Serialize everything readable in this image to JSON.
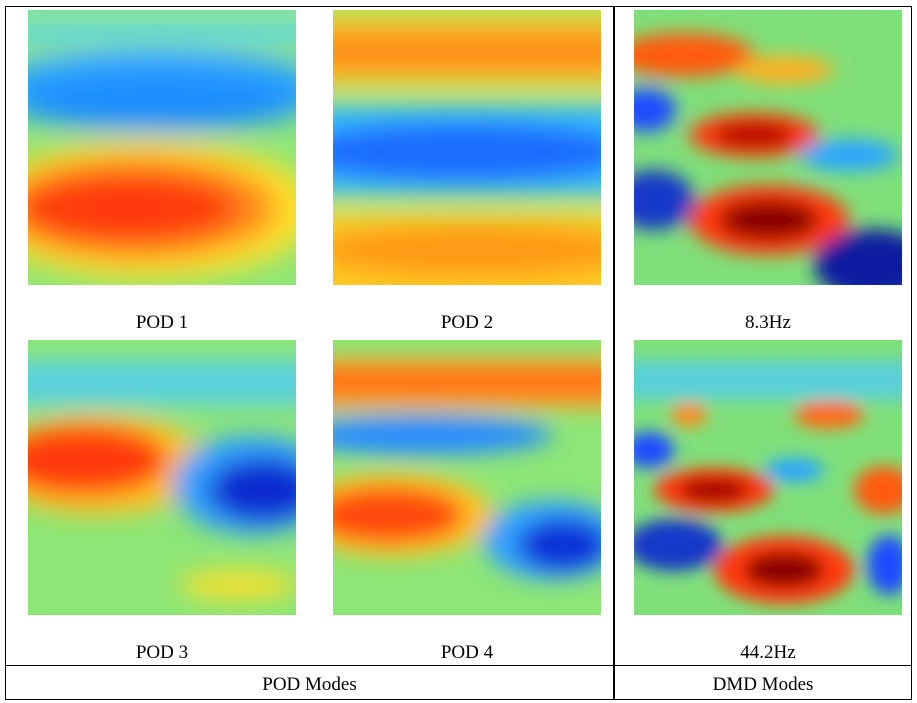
{
  "pod_section": {
    "label": "POD Modes",
    "panels": [
      {
        "caption": "POD 1"
      },
      {
        "caption": "POD 2"
      },
      {
        "caption": "POD 3"
      },
      {
        "caption": "POD 4"
      }
    ]
  },
  "dmd_section": {
    "label": "DMD Modes",
    "panels": [
      {
        "caption": "8.3Hz"
      },
      {
        "caption": "44.2Hz"
      }
    ]
  },
  "colormap": "jet"
}
